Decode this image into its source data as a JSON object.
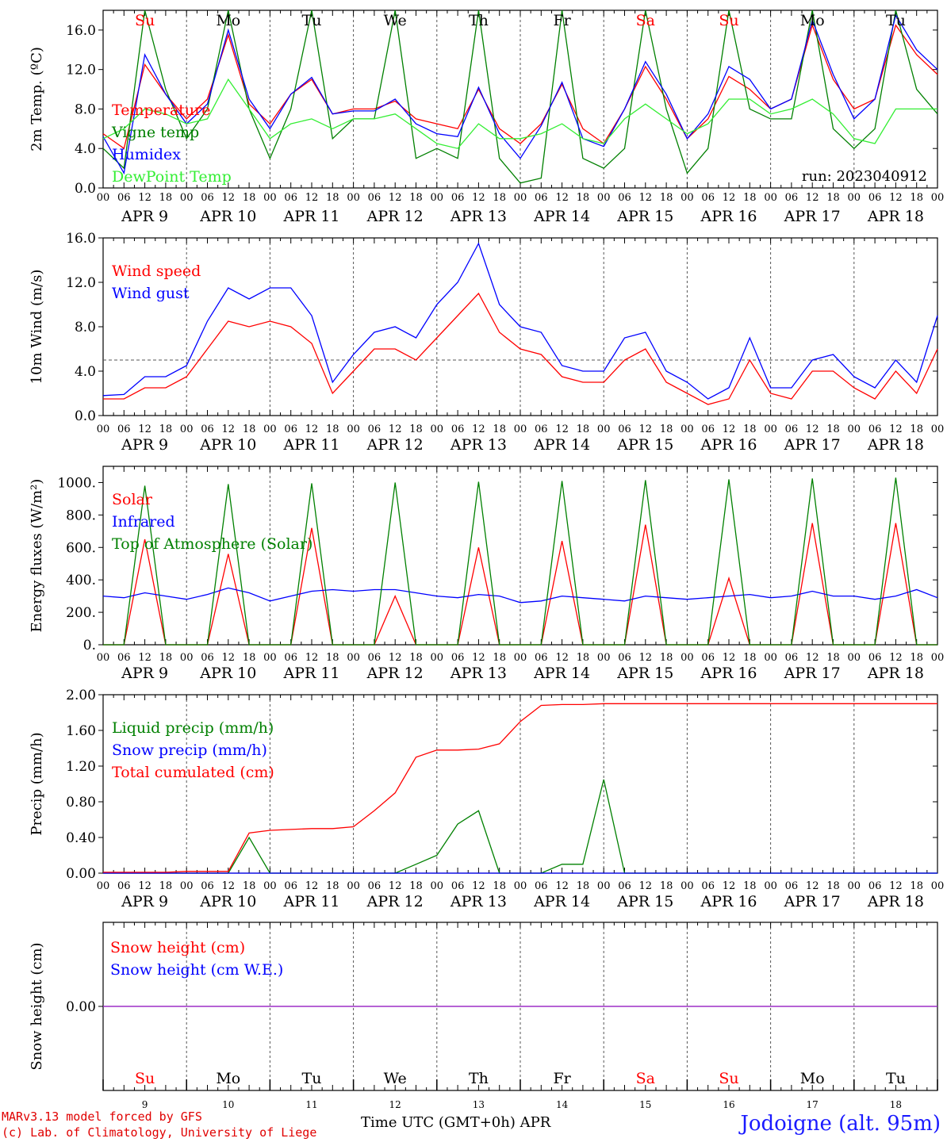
{
  "run_label": "run: 2023040912",
  "colors": {
    "red": "#ff0000",
    "green": "#008000",
    "blue": "#0000ff",
    "lightgreen": "#33ee33",
    "dashed": "#555555",
    "purple": "#8a2be2",
    "saturday_sunday": "#ff0000"
  },
  "days": {
    "short_labels": [
      "Su",
      "Mo",
      "Tu",
      "We",
      "Th",
      "Fr",
      "Sa",
      "Su",
      "Mo",
      "Tu"
    ],
    "weekend": [
      true,
      false,
      false,
      false,
      false,
      false,
      true,
      true,
      false,
      false
    ],
    "date_labels": [
      "APR  9",
      "APR 10",
      "APR 11",
      "APR 12",
      "APR 13",
      "APR 14",
      "APR 15",
      "APR 16",
      "APR 17",
      "APR 18"
    ],
    "day_numbers": [
      "9",
      "10",
      "11",
      "12",
      "13",
      "14",
      "15",
      "16",
      "17",
      "18"
    ],
    "hour_ticks": [
      "00",
      "06",
      "12",
      "18"
    ],
    "final_tick": "00"
  },
  "footer": {
    "credit1": "MARv3.13 model forced by GFS",
    "credit2": "(c) Lab. of Climatology, University of Liege",
    "xaxis_title": "Time UTC (GMT+0h) APR",
    "station": "Jodoigne (alt. 95m)"
  },
  "chart_data": [
    {
      "type": "line",
      "ylabel": "2m Temp. (ºC)",
      "ylim": [
        0,
        18
      ],
      "yticks": [
        "0.0",
        "4.0",
        "8.0",
        "12.0",
        "16.0"
      ],
      "ytick_values": [
        0,
        4,
        8,
        12,
        16
      ],
      "x_unit": "hours since APR 9 00 UTC",
      "x": [
        0,
        6,
        12,
        18,
        24,
        30,
        36,
        42,
        48,
        54,
        60,
        66,
        72,
        78,
        84,
        90,
        96,
        102,
        108,
        114,
        120,
        126,
        132,
        138,
        144,
        150,
        156,
        162,
        168,
        174,
        180,
        186,
        192,
        198,
        204,
        210,
        216,
        222,
        228,
        234,
        240
      ],
      "series": [
        {
          "name": "Temperature",
          "color": "red",
          "values": [
            5.5,
            4.0,
            12.5,
            9.5,
            7.0,
            9.0,
            15.5,
            8.5,
            6.5,
            9.5,
            11.0,
            7.5,
            8.0,
            8.0,
            8.8,
            7.0,
            6.5,
            6.0,
            10.0,
            6.0,
            4.5,
            6.5,
            10.5,
            6.0,
            4.5,
            8.0,
            12.3,
            9.0,
            5.0,
            7.0,
            11.3,
            10.0,
            8.0,
            9.0,
            16.5,
            11.0,
            8.0,
            9.0,
            16.5,
            13.5,
            11.5
          ]
        },
        {
          "name": "Vigne temp",
          "color": "green",
          "values": [
            4.0,
            2.0,
            18.0,
            10.0,
            5.0,
            8.0,
            18.0,
            8.0,
            3.0,
            8.0,
            18.0,
            5.0,
            7.0,
            7.0,
            18.0,
            3.0,
            4.0,
            3.0,
            18.0,
            3.0,
            0.5,
            1.0,
            18.0,
            3.0,
            2.0,
            4.0,
            18.0,
            8.0,
            1.5,
            4.0,
            18.0,
            8.0,
            7.0,
            7.0,
            18.0,
            6.0,
            4.0,
            6.0,
            18.0,
            10.0,
            7.5
          ]
        },
        {
          "name": "Humidex",
          "color": "blue",
          "values": [
            5.2,
            1.5,
            13.5,
            9.5,
            6.5,
            8.5,
            16.0,
            9.0,
            6.0,
            9.5,
            11.2,
            7.5,
            7.8,
            7.8,
            9.0,
            6.5,
            5.5,
            5.2,
            10.2,
            5.5,
            3.0,
            6.3,
            10.7,
            5.0,
            4.2,
            8.0,
            12.8,
            9.5,
            5.0,
            7.5,
            12.3,
            11.0,
            8.0,
            9.0,
            17.0,
            11.5,
            7.0,
            9.0,
            17.5,
            14.0,
            12.0
          ]
        },
        {
          "name": "DewPoint Temp",
          "color": "lightgreen",
          "values": [
            5.0,
            6.0,
            8.0,
            7.5,
            6.5,
            7.0,
            11.0,
            8.0,
            5.0,
            6.5,
            7.0,
            6.0,
            7.0,
            7.0,
            7.5,
            6.0,
            4.5,
            4.0,
            6.5,
            5.0,
            5.0,
            5.5,
            6.5,
            5.0,
            4.5,
            7.0,
            8.5,
            7.0,
            5.5,
            6.5,
            9.0,
            9.0,
            7.5,
            8.0,
            9.0,
            7.5,
            5.0,
            4.5,
            8.0,
            8.0,
            8.0
          ]
        }
      ],
      "legend_position": "top-left",
      "show_days": true
    },
    {
      "type": "line",
      "ylabel": "10m Wind (m/s)",
      "ylim": [
        0,
        16
      ],
      "yticks": [
        "0.0",
        "4.0",
        "8.0",
        "12.0",
        "16.0"
      ],
      "ytick_values": [
        0,
        4,
        8,
        12,
        16
      ],
      "reference_line": 5.0,
      "x_unit": "hours since APR 9 00 UTC",
      "x": [
        0,
        6,
        12,
        18,
        24,
        30,
        36,
        42,
        48,
        54,
        60,
        66,
        72,
        78,
        84,
        90,
        96,
        102,
        108,
        114,
        120,
        126,
        132,
        138,
        144,
        150,
        156,
        162,
        168,
        174,
        180,
        186,
        192,
        198,
        204,
        210,
        216,
        222,
        228,
        234,
        240
      ],
      "series": [
        {
          "name": "Wind speed",
          "color": "red",
          "values": [
            1.5,
            1.5,
            2.5,
            2.5,
            3.5,
            6.0,
            8.5,
            8.0,
            8.5,
            8.0,
            6.5,
            2.0,
            4.0,
            6.0,
            6.0,
            5.0,
            7.0,
            9.0,
            11.0,
            7.5,
            6.0,
            5.5,
            3.5,
            3.0,
            3.0,
            5.0,
            6.0,
            3.0,
            2.0,
            1.0,
            1.5,
            5.0,
            2.0,
            1.5,
            4.0,
            4.0,
            2.5,
            1.5,
            4.0,
            2.0,
            6.0
          ]
        },
        {
          "name": "Wind gust",
          "color": "blue",
          "values": [
            1.8,
            1.9,
            3.5,
            3.5,
            4.5,
            8.5,
            11.5,
            10.5,
            11.5,
            11.5,
            9.0,
            3.0,
            5.5,
            7.5,
            8.0,
            7.0,
            10.0,
            12.0,
            15.5,
            10.0,
            8.0,
            7.5,
            4.5,
            4.0,
            4.0,
            7.0,
            7.5,
            4.0,
            3.0,
            1.5,
            2.5,
            7.0,
            2.5,
            2.5,
            5.0,
            5.5,
            3.5,
            2.5,
            5.0,
            3.0,
            9.0
          ]
        }
      ],
      "legend_position": "top-left"
    },
    {
      "type": "line",
      "ylabel": "Energy fluxes (W/m²)",
      "ylim": [
        0,
        1100
      ],
      "yticks": [
        "0.",
        "200.",
        "400.",
        "600.",
        "800.",
        "1000."
      ],
      "ytick_values": [
        0,
        200,
        400,
        600,
        800,
        1000
      ],
      "x_unit": "hours since APR 9 00 UTC",
      "x": [
        0,
        6,
        12,
        18,
        24,
        30,
        36,
        42,
        48,
        54,
        60,
        66,
        72,
        78,
        84,
        90,
        96,
        102,
        108,
        114,
        120,
        126,
        132,
        138,
        144,
        150,
        156,
        162,
        168,
        174,
        180,
        186,
        192,
        198,
        204,
        210,
        216,
        222,
        228,
        234,
        240
      ],
      "series": [
        {
          "name": "Solar",
          "color": "red",
          "values": [
            0,
            0,
            650,
            0,
            0,
            0,
            560,
            0,
            0,
            0,
            720,
            0,
            0,
            0,
            300,
            0,
            0,
            0,
            600,
            0,
            0,
            0,
            640,
            0,
            0,
            0,
            740,
            0,
            0,
            0,
            410,
            0,
            0,
            0,
            750,
            0,
            0,
            0,
            750,
            0,
            0
          ]
        },
        {
          "name": "Infrared",
          "color": "blue",
          "values": [
            300,
            290,
            320,
            300,
            280,
            310,
            350,
            320,
            270,
            300,
            330,
            340,
            330,
            340,
            340,
            320,
            300,
            290,
            310,
            300,
            260,
            270,
            300,
            290,
            280,
            270,
            300,
            290,
            280,
            290,
            300,
            310,
            290,
            300,
            330,
            300,
            300,
            280,
            300,
            340,
            290
          ]
        },
        {
          "name": "Top of Atmosphere (Solar)",
          "color": "green",
          "values": [
            0,
            0,
            980,
            0,
            0,
            0,
            990,
            0,
            0,
            0,
            995,
            0,
            0,
            0,
            1000,
            0,
            0,
            0,
            1005,
            0,
            0,
            0,
            1010,
            0,
            0,
            0,
            1015,
            0,
            0,
            0,
            1020,
            0,
            0,
            0,
            1025,
            0,
            0,
            0,
            1030,
            0,
            0
          ]
        }
      ],
      "legend_position": "top-left"
    },
    {
      "type": "line",
      "ylabel": "Precip (mm/h)",
      "ylim": [
        0,
        2.0
      ],
      "yticks": [
        "0.00",
        "0.40",
        "0.80",
        "1.20",
        "1.60",
        "2.00"
      ],
      "ytick_values": [
        0,
        0.4,
        0.8,
        1.2,
        1.6,
        2.0
      ],
      "x_unit": "hours since APR 9 00 UTC",
      "x": [
        0,
        6,
        12,
        18,
        24,
        30,
        36,
        42,
        48,
        54,
        60,
        66,
        72,
        78,
        84,
        90,
        96,
        102,
        108,
        114,
        120,
        126,
        132,
        138,
        144,
        150,
        156,
        162,
        168,
        174,
        180,
        186,
        192,
        198,
        204,
        210,
        216,
        222,
        228,
        234,
        240
      ],
      "series": [
        {
          "name": "Liquid precip (mm/h)",
          "color": "green",
          "values": [
            0,
            0,
            0,
            0,
            0,
            0,
            0,
            0.4,
            0,
            0,
            0,
            0,
            0,
            0,
            0,
            0.1,
            0.2,
            0.55,
            0.7,
            0,
            0,
            0,
            0.1,
            0.1,
            1.05,
            0,
            0,
            0,
            0,
            0,
            0,
            0,
            0,
            0,
            0,
            0,
            0,
            0,
            0,
            0,
            0
          ]
        },
        {
          "name": "Snow precip (mm/h)",
          "color": "blue",
          "values": [
            0,
            0,
            0,
            0,
            0,
            0,
            0,
            0,
            0,
            0,
            0,
            0,
            0,
            0,
            0,
            0,
            0,
            0,
            0,
            0,
            0,
            0,
            0,
            0,
            0,
            0,
            0,
            0,
            0,
            0,
            0,
            0,
            0,
            0,
            0,
            0,
            0,
            0,
            0,
            0,
            0
          ]
        },
        {
          "name": "Total cumulated (cm)",
          "color": "red",
          "values": [
            0.01,
            0.01,
            0.01,
            0.01,
            0.02,
            0.02,
            0.02,
            0.45,
            0.48,
            0.49,
            0.5,
            0.5,
            0.52,
            0.7,
            0.9,
            1.3,
            1.38,
            1.38,
            1.39,
            1.45,
            1.7,
            1.88,
            1.89,
            1.89,
            1.9,
            1.9,
            1.9,
            1.9,
            1.9,
            1.9,
            1.9,
            1.9,
            1.9,
            1.9,
            1.9,
            1.9,
            1.9,
            1.9,
            1.9,
            1.9,
            1.9
          ]
        }
      ],
      "legend_position": "top-left"
    },
    {
      "type": "line",
      "ylabel": "Snow height (cm)",
      "ylim": [
        -1,
        1
      ],
      "yticks": [
        "0.00"
      ],
      "ytick_values": [
        0
      ],
      "x_unit": "hours since APR 9 00 UTC",
      "x": [
        0,
        240
      ],
      "series": [
        {
          "name": "Snow height (cm)",
          "color": "red",
          "values": [
            0,
            0
          ]
        },
        {
          "name": "Snow height (cm W.E.)",
          "color": "blue",
          "values": [
            0,
            0
          ]
        }
      ],
      "legend_position": "top-left",
      "show_days_bottom": true
    }
  ]
}
